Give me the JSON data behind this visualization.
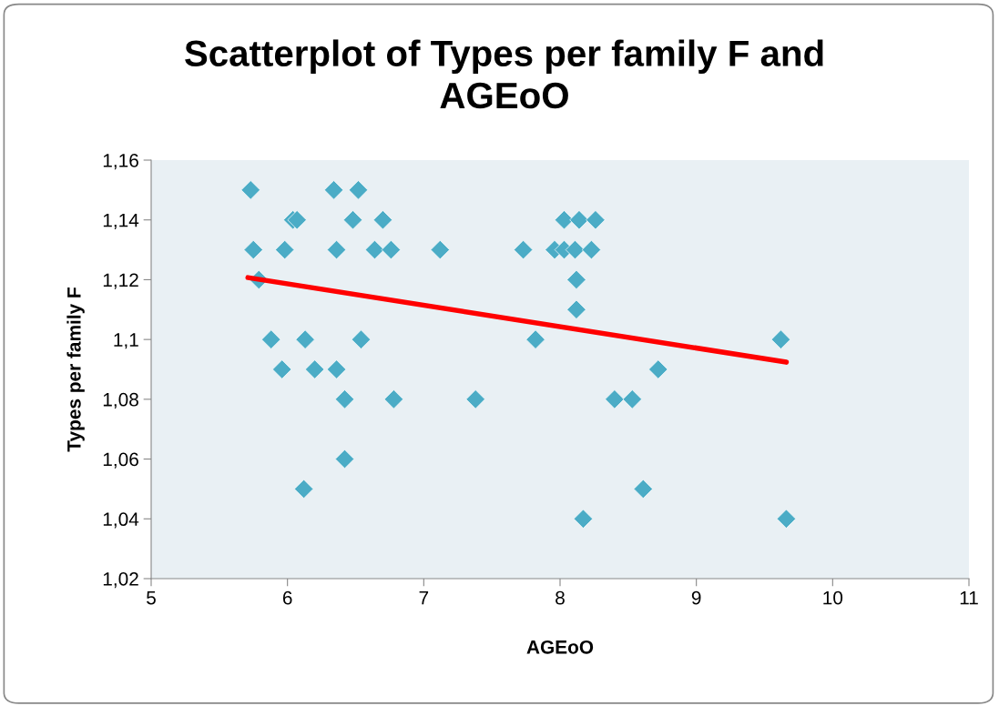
{
  "chart_data": {
    "type": "scatter",
    "title": "Scatterplot of Types per family F and AGEoO",
    "xlabel": "AGEoO",
    "ylabel": "Types per family F",
    "series": [
      {
        "color": "#4bacc6",
        "marker": "diamond",
        "x": [
          5.73,
          5.75,
          5.79,
          5.88,
          5.96,
          5.98,
          6.04,
          6.07,
          6.13,
          6.12,
          6.2,
          6.34,
          6.36,
          6.36,
          6.42,
          6.42,
          6.48,
          6.52,
          6.54,
          6.64,
          6.7,
          6.76,
          6.78,
          7.12,
          7.38,
          7.73,
          7.82,
          7.96,
          8.03,
          8.03,
          8.11,
          8.12,
          8.12,
          8.14,
          8.23,
          8.26,
          8.17,
          8.4,
          8.53,
          8.61,
          8.72,
          9.62,
          9.66
        ],
        "values": [
          1.15,
          1.13,
          1.12,
          1.1,
          1.09,
          1.13,
          1.14,
          1.14,
          1.1,
          1.05,
          1.09,
          1.15,
          1.13,
          1.09,
          1.08,
          1.06,
          1.14,
          1.15,
          1.1,
          1.13,
          1.14,
          1.13,
          1.08,
          1.13,
          1.08,
          1.13,
          1.1,
          1.13,
          1.14,
          1.13,
          1.13,
          1.11,
          1.12,
          1.14,
          1.13,
          1.14,
          1.04,
          1.08,
          1.08,
          1.05,
          1.09,
          1.1,
          1.04
        ]
      },
      {
        "type": "line",
        "color": "#ff0000",
        "marker": "none",
        "x": [
          5.71,
          9.66
        ],
        "values": [
          1.1207,
          1.0924
        ]
      }
    ],
    "xlim": [
      5,
      11
    ],
    "xticks": [
      5,
      6,
      7,
      8,
      9,
      10,
      11
    ],
    "ylim": [
      1.02,
      1.16
    ],
    "yticks": [
      {
        "value": 1.02,
        "label": "1,02"
      },
      {
        "value": 1.04,
        "label": "1,04"
      },
      {
        "value": 1.06,
        "label": "1,06"
      },
      {
        "value": 1.08,
        "label": "1,08"
      },
      {
        "value": 1.1,
        "label": "1,1"
      },
      {
        "value": 1.12,
        "label": "1,12"
      },
      {
        "value": 1.14,
        "label": "1,14"
      },
      {
        "value": 1.16,
        "label": "1,16"
      }
    ],
    "grid": false,
    "legend": false
  }
}
